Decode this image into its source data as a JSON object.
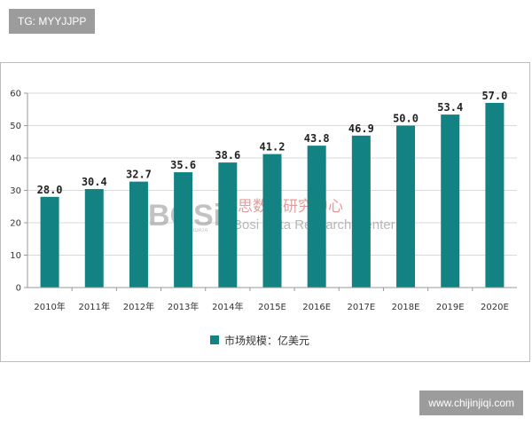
{
  "badges": {
    "tg": "TG: MYYJJPP",
    "site": "www.chijinjiqi.com"
  },
  "watermark": {
    "logo": "BOSi",
    "small": "BOSIDATA",
    "cn": "博思数据研究中心",
    "en": "Bosi Data Research Center"
  },
  "colors": {
    "bar": "#138282",
    "axis": "#999999",
    "grid": "#d9d9d9"
  },
  "chart_data": {
    "type": "bar",
    "categories": [
      "2010年",
      "2011年",
      "2012年",
      "2013年",
      "2014年",
      "2015E",
      "2016E",
      "2017E",
      "2018E",
      "2019E",
      "2020E"
    ],
    "series": [
      {
        "name": "市场规模：亿美元",
        "values": [
          28.0,
          30.4,
          32.7,
          35.6,
          38.6,
          41.2,
          43.8,
          46.9,
          50.0,
          53.4,
          57.0
        ],
        "labels": [
          "28.0",
          "30.4",
          "32.7",
          "35.6",
          "38.6",
          "41.2",
          "43.8",
          "46.9",
          "50.0",
          "53.4",
          "57.0"
        ]
      }
    ],
    "yticks": [
      0,
      10,
      20,
      30,
      40,
      50,
      60
    ],
    "ylim": [
      0,
      60
    ],
    "grid": true,
    "legend_position": "bottom"
  }
}
